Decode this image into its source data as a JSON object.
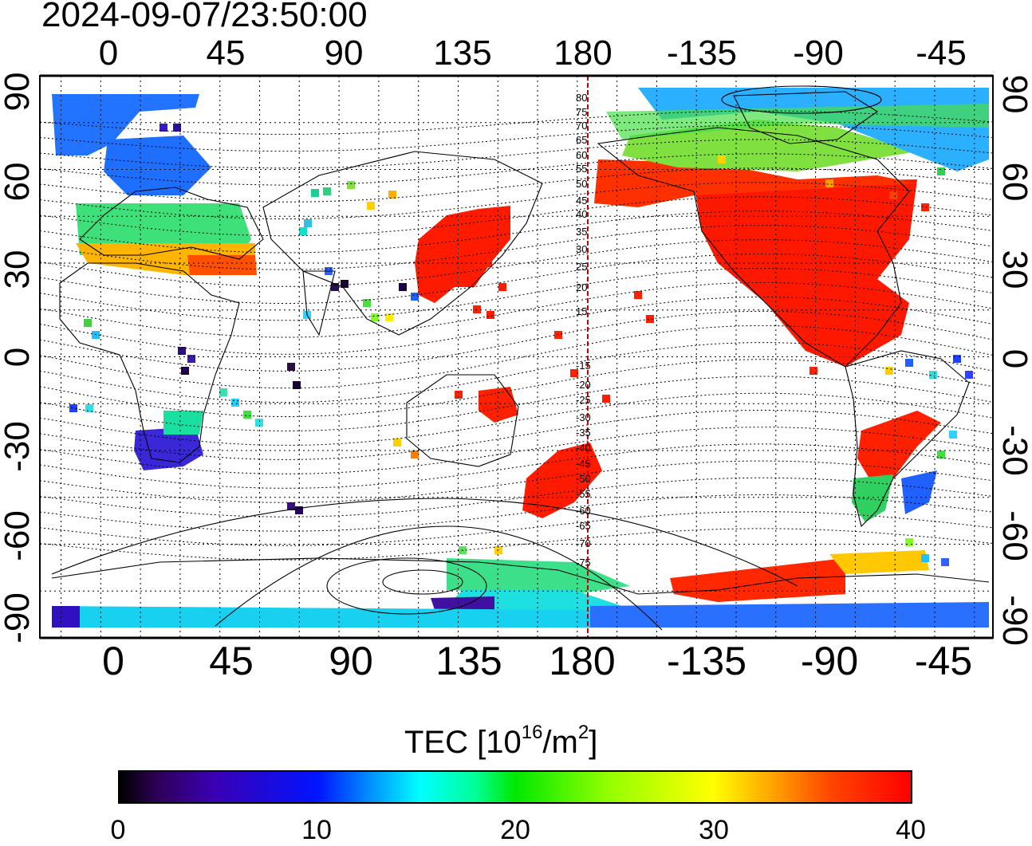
{
  "timestamp": "2024-09-07/23:50:00",
  "lon_ticks": [
    "0",
    "45",
    "90",
    "135",
    "180",
    "-135",
    "-90",
    "-45"
  ],
  "lat_ticks": [
    "90",
    "60",
    "30",
    "0",
    "-30",
    "-60",
    "-90"
  ],
  "mlat_labels": [
    "80",
    "75",
    "70",
    "65",
    "60",
    "55",
    "50",
    "45",
    "40",
    "35",
    "30",
    "25",
    "20",
    "15",
    "-15",
    "-20",
    "-25",
    "-30",
    "-35",
    "-40",
    "-45",
    "-50",
    "-55",
    "-60",
    "-65",
    "-70",
    "-75"
  ],
  "colorbar": {
    "title_prefix": "TEC  [10",
    "title_exp": "16",
    "title_mid": "/m",
    "title_exp2": "2",
    "title_suffix": "]",
    "ticks": [
      "0",
      "10",
      "20",
      "30",
      "40"
    ],
    "min": 0,
    "max": 40
  },
  "map": {
    "lon_range": [
      -23,
      337
    ],
    "lat_range": [
      -90,
      90
    ],
    "projection": "equirectangular",
    "grid": "dotted every 15 degrees",
    "central_line_lon": 183,
    "central_line_color": "#cc0000"
  },
  "colors": {
    "low": "#000000",
    "mid_blue": "#0014ff",
    "cyan": "#00ffff",
    "green": "#00e800",
    "yellow": "#ffff00",
    "high": "#ff0000"
  }
}
